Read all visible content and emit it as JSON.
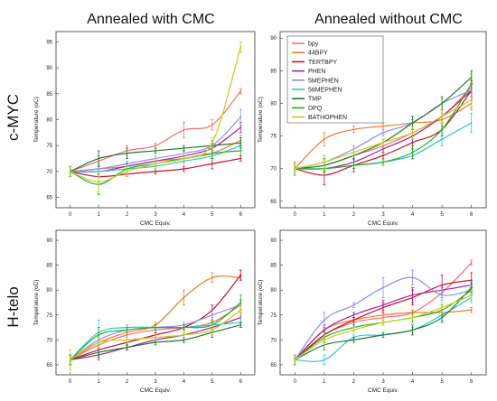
{
  "figure": {
    "column_titles": [
      "Annealed with CMC",
      "Annealed without CMC"
    ],
    "row_titles": [
      "c-MYC",
      "H-telo"
    ]
  },
  "legend": {
    "entries": [
      {
        "name": "bpy",
        "color": "#ff6b6b"
      },
      {
        "name": "44BPY",
        "color": "#f07a2a"
      },
      {
        "name": "TERTBPY",
        "color": "#c8102e"
      },
      {
        "name": "PHEN",
        "color": "#a4249c"
      },
      {
        "name": "5MEPHEN",
        "color": "#8c8cf0"
      },
      {
        "name": "56MEPHEN",
        "color": "#2ec4d6"
      },
      {
        "name": "TMP",
        "color": "#1f7a2e"
      },
      {
        "name": "DPQ",
        "color": "#22b022"
      },
      {
        "name": "BATHOPHEN",
        "color": "#c8cc1e"
      }
    ]
  },
  "chart_data": [
    {
      "type": "line",
      "panel": "c-MYC / Annealed with CMC",
      "xlabel": "CMC Equiv.",
      "ylabel": "Temperature (oC)",
      "xlim": [
        -0.5,
        6.5
      ],
      "ylim": [
        63,
        97
      ],
      "xticks": [
        0,
        1,
        2,
        3,
        4,
        5,
        6
      ],
      "yticks": [
        65,
        70,
        75,
        80,
        85,
        90,
        95
      ],
      "x": [
        0,
        1,
        2,
        3,
        4,
        5,
        6
      ],
      "series": [
        {
          "name": "bpy",
          "values": [
            70,
            72,
            74,
            75,
            78,
            79,
            85.5
          ],
          "errors": [
            1,
            1,
            1,
            0.5,
            1.5,
            1,
            0.5
          ]
        },
        {
          "name": "44BPY",
          "values": [
            70,
            70.5,
            71,
            72,
            72.5,
            73.5,
            76
          ],
          "errors": [
            1,
            1,
            0.5,
            0.5,
            0.5,
            1,
            1
          ]
        },
        {
          "name": "TERTBPY",
          "values": [
            70,
            69,
            69.5,
            70,
            70.5,
            71.5,
            72.5
          ],
          "errors": [
            1,
            1,
            0.5,
            0.5,
            0.5,
            1,
            0.5
          ]
        },
        {
          "name": "PHEN",
          "values": [
            70,
            70,
            71,
            72,
            73,
            74.5,
            78.5
          ],
          "errors": [
            1,
            1,
            0.5,
            0.5,
            1,
            1,
            1
          ]
        },
        {
          "name": "5MEPHEN",
          "values": [
            70,
            70.5,
            71.5,
            72.5,
            73.5,
            75,
            80.5
          ],
          "errors": [
            1,
            1,
            0.5,
            0.5,
            1,
            1,
            1.5
          ]
        },
        {
          "name": "56MEPHEN",
          "values": [
            70,
            70,
            70.5,
            71,
            72,
            73,
            75
          ],
          "errors": [
            1,
            1,
            0.5,
            0.5,
            0.5,
            1,
            1
          ]
        },
        {
          "name": "TMP",
          "values": [
            70,
            72.5,
            73.5,
            74,
            74.5,
            75,
            75.5
          ],
          "errors": [
            1,
            1.5,
            1,
            0.5,
            0.5,
            0.5,
            1
          ]
        },
        {
          "name": "DPQ",
          "values": [
            70,
            67.5,
            70.5,
            71.5,
            72.5,
            73.5,
            74
          ],
          "errors": [
            1,
            2,
            1,
            0.5,
            0.5,
            1,
            1
          ]
        },
        {
          "name": "BATHOPHEN",
          "values": [
            70,
            68,
            70,
            71.5,
            72.5,
            75.5,
            94
          ],
          "errors": [
            1,
            2,
            1,
            1,
            1,
            1,
            1
          ]
        }
      ]
    },
    {
      "type": "line",
      "panel": "c-MYC / Annealed without CMC",
      "xlabel": "CMC Equiv.",
      "ylabel": "Temperature (oC)",
      "xlim": [
        -0.5,
        6.5
      ],
      "ylim": [
        64,
        91
      ],
      "xticks": [
        0,
        1,
        2,
        3,
        4,
        5,
        6
      ],
      "yticks": [
        65,
        70,
        75,
        80,
        85,
        90
      ],
      "x": [
        0,
        1,
        2,
        3,
        4,
        5,
        6
      ],
      "series": [
        {
          "name": "bpy",
          "values": [
            70,
            70.5,
            72,
            73.5,
            75.5,
            78,
            82.5
          ],
          "errors": [
            1,
            1,
            0.5,
            0.5,
            1,
            1,
            1
          ]
        },
        {
          "name": "44BPY",
          "values": [
            70,
            74.5,
            76,
            76.5,
            77,
            77.5,
            80
          ],
          "errors": [
            1,
            1,
            0.5,
            0.5,
            0.5,
            1,
            1
          ]
        },
        {
          "name": "TERTBPY",
          "values": [
            70,
            69,
            70.5,
            72,
            74,
            76,
            82
          ],
          "errors": [
            1,
            1.5,
            1,
            0.5,
            1,
            1,
            1.5
          ]
        },
        {
          "name": "PHEN",
          "values": [
            70,
            70,
            71,
            73,
            75,
            78,
            82
          ],
          "errors": [
            1,
            1,
            0.5,
            0.5,
            1,
            1,
            1
          ]
        },
        {
          "name": "5MEPHEN",
          "values": [
            70,
            71,
            73,
            75.5,
            77,
            80,
            82
          ],
          "errors": [
            1,
            1,
            0.5,
            0.5,
            1,
            1,
            1
          ]
        },
        {
          "name": "56MEPHEN",
          "values": [
            70,
            70,
            70.5,
            71,
            72,
            74.5,
            77
          ],
          "errors": [
            1,
            1,
            0.5,
            0.5,
            0.5,
            1,
            1.5
          ]
        },
        {
          "name": "TMP",
          "values": [
            70,
            70.5,
            72,
            74,
            77,
            80,
            84
          ],
          "errors": [
            1,
            1,
            0.5,
            0.5,
            1,
            1,
            1
          ]
        },
        {
          "name": "DPQ",
          "values": [
            70,
            70,
            70.5,
            71,
            72.5,
            76,
            83
          ],
          "errors": [
            1,
            1,
            0.5,
            0.5,
            1,
            1,
            1.5
          ]
        },
        {
          "name": "BATHOPHEN",
          "values": [
            70,
            71,
            72.5,
            74,
            75.5,
            78,
            80.5
          ],
          "errors": [
            1,
            1,
            0.5,
            0.5,
            1,
            1,
            1
          ]
        }
      ]
    },
    {
      "type": "line",
      "panel": "H-telo / Annealed with CMC",
      "xlabel": "CMC Equiv.",
      "ylabel": "Temperature (oC)",
      "xlim": [
        -0.5,
        6.5
      ],
      "ylim": [
        63,
        92
      ],
      "xticks": [
        0,
        1,
        2,
        3,
        4,
        5,
        6
      ],
      "yticks": [
        65,
        70,
        75,
        80,
        85,
        90
      ],
      "x": [
        0,
        1,
        2,
        3,
        4,
        5,
        6
      ],
      "series": [
        {
          "name": "bpy",
          "values": [
            66,
            69,
            71,
            72,
            72.5,
            73.5,
            77
          ],
          "errors": [
            1,
            1,
            0.5,
            0.5,
            0.5,
            1,
            1
          ]
        },
        {
          "name": "44BPY",
          "values": [
            66,
            69.5,
            71.5,
            73,
            78.5,
            82.5,
            82.5
          ],
          "errors": [
            1,
            1,
            0.5,
            0.5,
            1.5,
            1,
            0.5
          ]
        },
        {
          "name": "TERTBPY",
          "values": [
            66,
            68,
            69.5,
            71,
            72.5,
            76,
            83
          ],
          "errors": [
            1,
            1,
            0.5,
            0.5,
            0.5,
            1,
            1
          ]
        },
        {
          "name": "PHEN",
          "values": [
            66,
            67,
            68.5,
            70,
            71,
            72.5,
            74.5
          ],
          "errors": [
            1,
            1,
            0.5,
            0.5,
            0.5,
            1,
            1
          ]
        },
        {
          "name": "5MEPHEN",
          "values": [
            66,
            70,
            72,
            72.5,
            73,
            75,
            77
          ],
          "errors": [
            1,
            1,
            0.5,
            0.5,
            0.5,
            1,
            1
          ]
        },
        {
          "name": "56MEPHEN",
          "values": [
            66,
            71.5,
            72.5,
            72.5,
            72.5,
            73,
            73.5
          ],
          "errors": [
            1,
            2.5,
            0.5,
            0.5,
            0.5,
            1,
            1
          ]
        },
        {
          "name": "TMP",
          "values": [
            66,
            67.5,
            68.5,
            69.5,
            70,
            71.5,
            73
          ],
          "errors": [
            1,
            1,
            0.5,
            0.5,
            0.5,
            1,
            0.5
          ]
        },
        {
          "name": "DPQ",
          "values": [
            66,
            71,
            72,
            72.5,
            72.5,
            73,
            77.5
          ],
          "errors": [
            1,
            1.5,
            0.5,
            0.5,
            0.5,
            1,
            1.5
          ]
        },
        {
          "name": "BATHOPHEN",
          "values": [
            66,
            69.5,
            70,
            70.5,
            71,
            72,
            76
          ],
          "errors": [
            2,
            1,
            0.5,
            0.5,
            0.5,
            1,
            1
          ]
        }
      ]
    },
    {
      "type": "line",
      "panel": "H-telo / Annealed without CMC",
      "xlabel": "CMC Equiv.",
      "ylabel": "Temperature (oC)",
      "xlim": [
        -0.5,
        6.5
      ],
      "ylim": [
        63,
        92
      ],
      "xticks": [
        0,
        1,
        2,
        3,
        4,
        5,
        6
      ],
      "yticks": [
        65,
        70,
        75,
        80,
        85,
        90
      ],
      "x": [
        0,
        1,
        2,
        3,
        4,
        5,
        6
      ],
      "series": [
        {
          "name": "bpy",
          "values": [
            66,
            71,
            73.5,
            74.5,
            75.5,
            79.5,
            85.5
          ],
          "errors": [
            1,
            1,
            0.5,
            0.5,
            0.5,
            1,
            0.5
          ]
        },
        {
          "name": "44BPY",
          "values": [
            66,
            72,
            74,
            75,
            75.5,
            75.5,
            76
          ],
          "errors": [
            1,
            1,
            0.5,
            0.5,
            0.5,
            0.5,
            0.5
          ]
        },
        {
          "name": "TERTBPY",
          "values": [
            66,
            71,
            74,
            76.5,
            78.5,
            81,
            82
          ],
          "errors": [
            1,
            1.5,
            0.5,
            1,
            1.5,
            2,
            1.5
          ]
        },
        {
          "name": "PHEN",
          "values": [
            66,
            72,
            75,
            77,
            79,
            80,
            81
          ],
          "errors": [
            1,
            1,
            0.5,
            1,
            1.5,
            1,
            1
          ]
        },
        {
          "name": "5MEPHEN",
          "values": [
            66,
            74,
            77,
            80.5,
            82.5,
            79,
            80
          ],
          "errors": [
            1,
            1.5,
            0.5,
            2,
            1.5,
            1,
            1
          ]
        },
        {
          "name": "56MEPHEN",
          "values": [
            66,
            66,
            70.5,
            71,
            72,
            75,
            78.5
          ],
          "errors": [
            1,
            1,
            0.5,
            0.5,
            0.5,
            1,
            1
          ]
        },
        {
          "name": "TMP",
          "values": [
            66,
            69,
            70,
            71,
            72,
            74.5,
            80.5
          ],
          "errors": [
            1,
            1,
            0.5,
            0.5,
            1,
            1,
            1
          ]
        },
        {
          "name": "DPQ",
          "values": [
            66,
            70.5,
            72.5,
            73.5,
            74.5,
            76,
            80
          ],
          "errors": [
            1,
            1,
            0.5,
            0.5,
            1,
            1,
            1
          ]
        },
        {
          "name": "BATHOPHEN",
          "values": [
            66,
            70,
            72,
            73.5,
            74.5,
            76.5,
            79
          ],
          "errors": [
            1,
            1,
            0.5,
            0.5,
            0.5,
            1,
            1
          ]
        }
      ]
    }
  ]
}
